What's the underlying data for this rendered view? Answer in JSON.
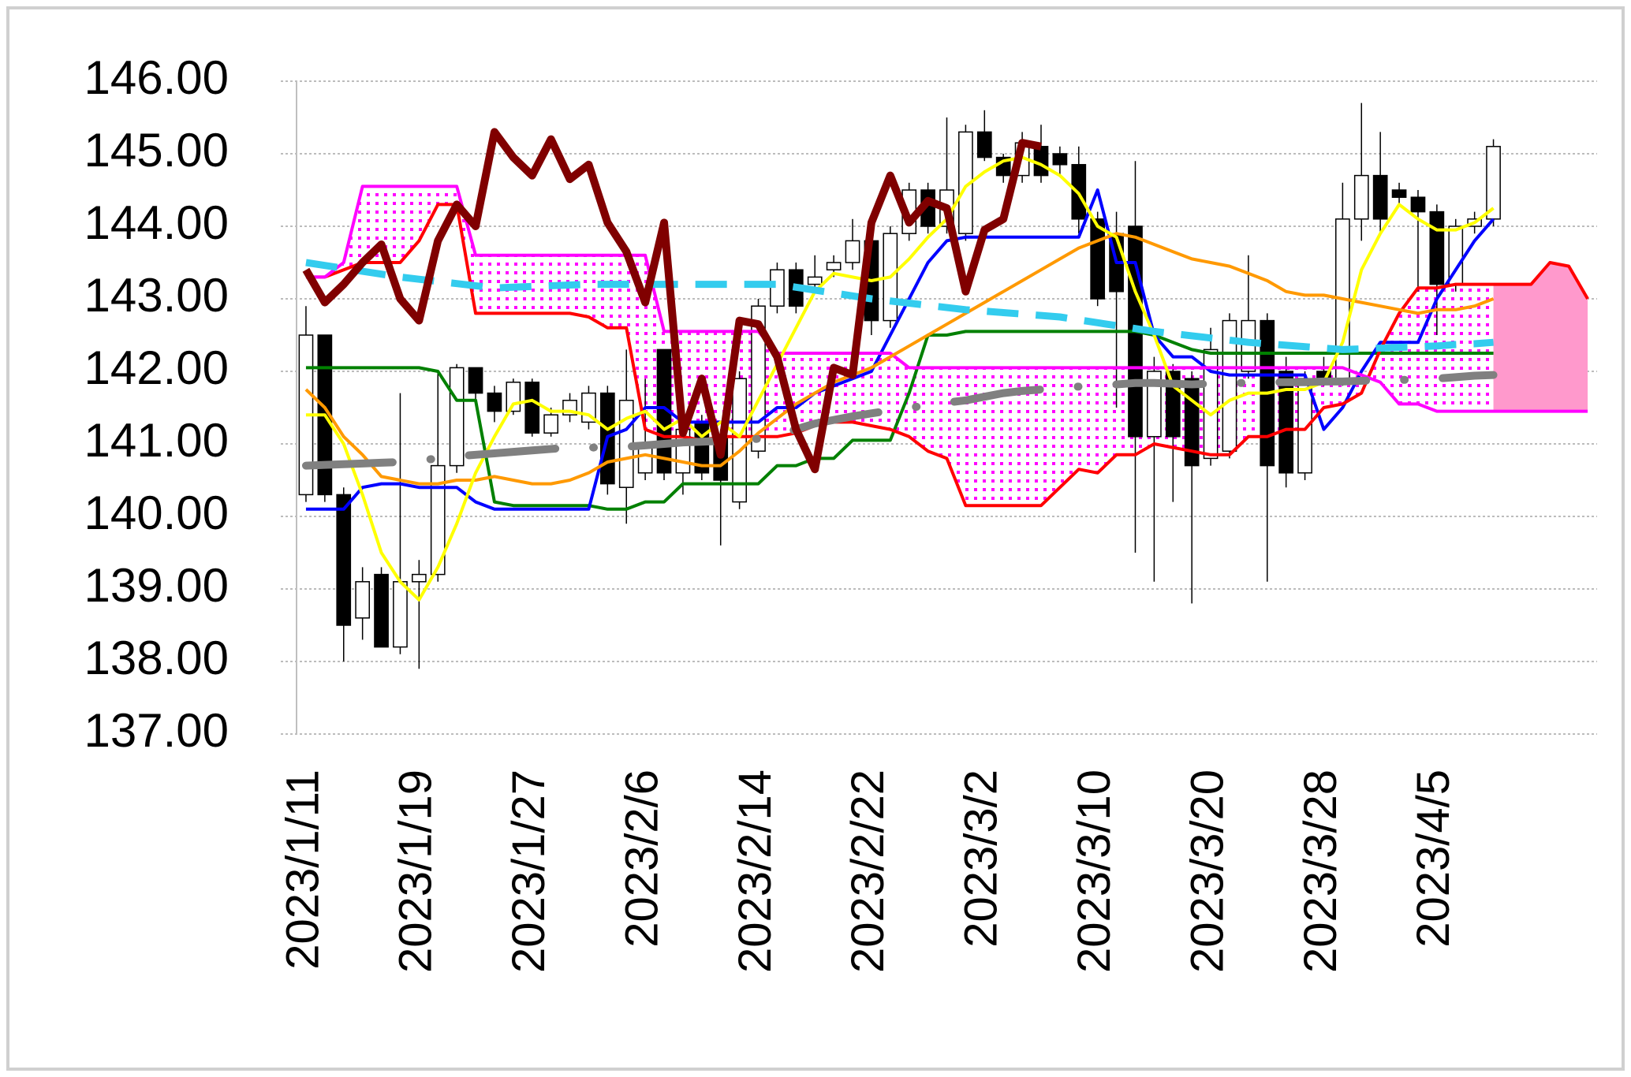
{
  "chart_data": {
    "type": "candlestick",
    "categories": [
      "2023/1/11",
      null,
      null,
      null,
      null,
      null,
      "2023/1/19",
      null,
      null,
      null,
      null,
      null,
      "2023/1/27",
      null,
      null,
      null,
      null,
      null,
      "2023/2/6",
      null,
      null,
      null,
      null,
      null,
      "2023/2/14",
      null,
      null,
      null,
      null,
      null,
      "2023/2/22",
      null,
      null,
      null,
      null,
      null,
      "2023/3/2",
      null,
      null,
      null,
      null,
      null,
      "2023/3/10",
      null,
      null,
      null,
      null,
      null,
      "2023/3/20",
      null,
      null,
      null,
      null,
      null,
      "2023/3/28",
      null,
      null,
      null,
      null,
      null,
      "2023/4/5",
      null,
      null,
      null,
      null,
      null,
      null,
      null,
      null
    ],
    "ohlc": {
      "up_color": "#ffffff",
      "down_color": "#000000",
      "open": [
        140.3,
        142.5,
        140.3,
        138.6,
        139.2,
        138.2,
        139.1,
        139.2,
        140.7,
        142.05,
        141.7,
        141.45,
        141.85,
        141.15,
        141.4,
        141.3,
        141.7,
        140.4,
        140.6,
        142.3,
        140.6,
        141.3,
        141.1,
        140.2,
        140.9,
        142.9,
        143.4,
        143.2,
        143.4,
        143.5,
        143.8,
        142.7,
        143.9,
        144.5,
        144.0,
        143.9,
        145.3,
        144.95,
        144.7,
        145.1,
        145.0,
        144.85,
        144.1,
        143.9,
        144.0,
        141.1,
        142.0,
        141.9,
        140.8,
        140.9,
        142.0,
        142.7,
        142.0,
        140.6,
        142.0,
        141.9,
        144.1,
        144.7,
        144.5,
        144.4,
        144.2,
        143.2,
        144.0,
        144.1,
        null,
        null,
        null,
        null,
        null
      ],
      "high": [
        142.9,
        142.5,
        140.4,
        139.3,
        139.3,
        141.7,
        139.4,
        142.0,
        142.1,
        142.05,
        141.8,
        141.9,
        141.9,
        141.5,
        141.7,
        141.8,
        141.8,
        142.3,
        141.9,
        142.3,
        141.3,
        141.4,
        141.2,
        142.0,
        143.0,
        143.5,
        143.5,
        143.6,
        143.6,
        144.1,
        143.9,
        144.0,
        144.6,
        144.6,
        145.5,
        145.4,
        145.6,
        145.0,
        145.3,
        145.4,
        145.1,
        145.1,
        144.2,
        144.2,
        144.9,
        142.2,
        142.1,
        142.0,
        142.6,
        142.8,
        143.6,
        142.8,
        142.2,
        142.0,
        142.2,
        144.6,
        145.7,
        145.3,
        144.6,
        144.5,
        144.3,
        144.1,
        144.2,
        145.2,
        null,
        null,
        null,
        null,
        null
      ],
      "low": [
        140.2,
        140.2,
        138.0,
        138.3,
        138.2,
        138.1,
        137.9,
        139.1,
        140.6,
        141.6,
        141.3,
        141.4,
        141.1,
        141.1,
        141.3,
        141.2,
        140.3,
        139.9,
        140.5,
        140.5,
        140.3,
        140.5,
        139.6,
        140.1,
        140.8,
        142.8,
        142.8,
        143.1,
        143.3,
        143.4,
        142.5,
        142.6,
        143.8,
        143.9,
        143.9,
        143.8,
        144.9,
        144.6,
        144.6,
        144.6,
        144.7,
        143.9,
        142.9,
        141.5,
        139.5,
        139.1,
        140.2,
        138.8,
        140.7,
        140.8,
        141.9,
        139.1,
        140.4,
        140.5,
        141.8,
        141.8,
        143.8,
        143.9,
        144.3,
        143.1,
        142.5,
        143.1,
        143.9,
        144.0,
        null,
        null,
        null,
        null,
        null
      ],
      "close": [
        142.5,
        140.3,
        138.5,
        139.1,
        138.2,
        139.1,
        139.2,
        140.7,
        142.05,
        141.7,
        141.45,
        141.85,
        141.15,
        141.4,
        141.6,
        141.7,
        140.45,
        141.6,
        141.0,
        140.6,
        141.2,
        140.6,
        140.5,
        141.9,
        142.9,
        143.4,
        142.9,
        143.3,
        143.5,
        143.8,
        142.7,
        143.9,
        144.5,
        144.0,
        144.5,
        145.3,
        144.95,
        144.7,
        145.15,
        144.7,
        144.85,
        144.1,
        143.0,
        143.1,
        141.1,
        142.0,
        141.1,
        140.7,
        142.3,
        142.7,
        142.7,
        140.7,
        140.6,
        141.9,
        141.9,
        144.1,
        144.7,
        144.1,
        144.4,
        144.2,
        143.2,
        144.0,
        144.1,
        145.1,
        null,
        null,
        null,
        null,
        null
      ]
    },
    "cloud": {
      "color": "#ff99cc",
      "dot_color": "#ff00ff"
    },
    "series": [
      {
        "color": "#008000",
        "width": 4,
        "values": [
          142.05,
          142.05,
          142.05,
          142.05,
          142.05,
          142.05,
          142.05,
          142.0,
          141.6,
          141.6,
          140.2,
          140.15,
          140.15,
          140.15,
          140.15,
          140.15,
          140.1,
          140.1,
          140.2,
          140.2,
          140.45,
          140.45,
          140.45,
          140.45,
          140.45,
          140.7,
          140.7,
          140.8,
          140.8,
          141.05,
          141.05,
          141.05,
          141.7,
          142.5,
          142.5,
          142.55,
          142.55,
          142.55,
          142.55,
          142.55,
          142.55,
          142.55,
          142.55,
          142.55,
          142.55,
          142.5,
          142.4,
          142.3,
          142.25,
          142.25,
          142.25,
          142.25,
          142.25,
          142.25,
          142.25,
          142.25,
          142.25,
          142.25,
          142.25,
          142.25,
          142.25,
          142.25,
          142.25,
          142.25,
          null,
          null,
          null,
          null,
          null
        ]
      },
      {
        "color": "#0000ff",
        "width": 4,
        "values": [
          140.1,
          140.1,
          140.1,
          140.4,
          140.45,
          140.45,
          140.4,
          140.4,
          140.4,
          140.2,
          140.1,
          140.1,
          140.1,
          140.1,
          140.1,
          140.1,
          141.1,
          141.2,
          141.5,
          141.5,
          141.3,
          141.3,
          141.3,
          141.3,
          141.3,
          141.5,
          141.5,
          141.7,
          141.8,
          141.9,
          142.0,
          142.5,
          143.0,
          143.5,
          143.8,
          143.85,
          143.85,
          143.85,
          143.85,
          143.85,
          143.85,
          143.85,
          144.5,
          143.5,
          143.5,
          142.5,
          142.2,
          142.2,
          142.0,
          141.95,
          141.95,
          141.95,
          141.95,
          141.95,
          141.2,
          141.5,
          142.0,
          142.4,
          142.4,
          142.4,
          143.0,
          143.4,
          143.8,
          144.1,
          null,
          null,
          null,
          null,
          null
        ]
      },
      {
        "color": "#ff0000",
        "width": 4,
        "cloud_edge": true,
        "values": [
          143.3,
          143.3,
          143.4,
          143.5,
          143.5,
          143.5,
          143.8,
          144.3,
          144.3,
          142.8,
          142.8,
          142.8,
          142.8,
          142.8,
          142.8,
          142.75,
          142.6,
          142.6,
          141.2,
          141.1,
          141.1,
          141.05,
          141.1,
          141.1,
          141.1,
          141.1,
          141.15,
          141.25,
          141.3,
          141.3,
          141.25,
          141.2,
          141.1,
          140.9,
          140.8,
          140.15,
          140.15,
          140.15,
          140.15,
          140.15,
          140.4,
          140.65,
          140.6,
          140.85,
          140.85,
          141.0,
          140.95,
          140.9,
          140.85,
          140.85,
          141.1,
          141.1,
          141.2,
          141.2,
          141.5,
          141.55,
          141.7,
          142.3,
          142.8,
          143.15,
          143.15,
          143.2,
          143.2,
          143.2,
          143.2,
          143.2,
          143.5,
          143.45,
          143.0
        ]
      },
      {
        "color": "#ff00ff",
        "width": 4,
        "cloud_edge": true,
        "values": [
          143.3,
          143.3,
          143.5,
          144.55,
          144.55,
          144.55,
          144.55,
          144.55,
          144.55,
          143.6,
          143.6,
          143.6,
          143.6,
          143.6,
          143.6,
          143.6,
          143.6,
          143.6,
          143.6,
          142.55,
          142.55,
          142.55,
          142.55,
          142.55,
          142.55,
          142.25,
          142.25,
          142.25,
          142.25,
          142.25,
          142.25,
          142.25,
          142.05,
          142.05,
          142.05,
          142.05,
          142.05,
          142.05,
          142.05,
          142.05,
          142.05,
          142.05,
          142.05,
          142.05,
          142.05,
          142.05,
          142.05,
          142.05,
          142.05,
          142.05,
          142.05,
          142.05,
          142.05,
          142.05,
          142.05,
          142.05,
          141.95,
          141.85,
          141.55,
          141.55,
          141.45,
          141.45,
          141.45,
          141.45,
          141.45,
          141.45,
          141.45,
          141.45,
          141.45
        ]
      },
      {
        "color": "#ff9900",
        "width": 4,
        "values": [
          141.75,
          141.5,
          141.1,
          140.85,
          140.55,
          140.5,
          140.45,
          140.45,
          140.5,
          140.5,
          140.55,
          140.5,
          140.45,
          140.45,
          140.5,
          140.6,
          140.75,
          140.8,
          140.85,
          140.8,
          140.75,
          140.7,
          140.7,
          140.9,
          141.15,
          141.35,
          141.55,
          141.7,
          141.85,
          141.95,
          142.05,
          142.2,
          142.35,
          142.5,
          142.65,
          142.8,
          142.95,
          143.1,
          143.25,
          143.4,
          143.55,
          143.7,
          143.8,
          143.9,
          143.85,
          143.75,
          143.65,
          143.55,
          143.5,
          143.45,
          143.35,
          143.25,
          143.1,
          143.05,
          143.05,
          143.0,
          142.95,
          142.9,
          142.85,
          142.8,
          142.85,
          142.85,
          142.9,
          143.0,
          null,
          null,
          null,
          null,
          null
        ]
      },
      {
        "color": "#ffff00",
        "width": 4,
        "values": [
          141.4,
          141.4,
          141.0,
          140.3,
          139.5,
          139.1,
          138.85,
          139.3,
          139.9,
          140.6,
          141.1,
          141.55,
          141.6,
          141.45,
          141.45,
          141.4,
          141.2,
          141.35,
          141.45,
          141.2,
          141.35,
          141.1,
          141.3,
          141.1,
          141.6,
          142.1,
          142.6,
          143.1,
          143.35,
          143.3,
          143.25,
          143.3,
          143.55,
          143.85,
          144.1,
          144.55,
          144.75,
          144.9,
          144.95,
          144.85,
          144.7,
          144.45,
          144.0,
          143.85,
          143.1,
          142.5,
          141.8,
          141.6,
          141.4,
          141.6,
          141.7,
          141.7,
          141.75,
          141.75,
          141.85,
          142.4,
          143.4,
          143.9,
          144.3,
          144.1,
          143.95,
          143.95,
          144.05,
          144.25,
          null,
          null,
          null,
          null,
          null
        ]
      },
      {
        "color": "#33ccee",
        "width": 9,
        "style": "dashed",
        "values": [
          143.5,
          143.46,
          143.42,
          143.38,
          143.34,
          143.3,
          143.27,
          143.24,
          143.21,
          143.18,
          143.15,
          143.16,
          143.17,
          143.18,
          143.19,
          143.2,
          143.2,
          143.2,
          143.2,
          143.2,
          143.2,
          143.2,
          143.2,
          143.2,
          143.2,
          143.2,
          143.16,
          143.12,
          143.08,
          143.04,
          143.0,
          142.97,
          142.94,
          142.91,
          142.88,
          142.85,
          142.83,
          142.81,
          142.79,
          142.77,
          142.75,
          142.71,
          142.67,
          142.63,
          142.59,
          142.55,
          142.52,
          142.49,
          142.46,
          142.43,
          142.4,
          142.38,
          142.36,
          142.34,
          142.32,
          142.3,
          142.31,
          142.32,
          142.33,
          142.34,
          142.35,
          142.37,
          142.38,
          142.4,
          null,
          null,
          null,
          null,
          null
        ]
      },
      {
        "color": "#808080",
        "width": 10,
        "style": "dash-dot",
        "values": [
          140.7,
          140.71,
          140.72,
          140.73,
          140.74,
          140.75,
          140.77,
          140.8,
          140.83,
          140.85,
          140.87,
          140.89,
          140.91,
          140.93,
          140.95,
          140.95,
          140.95,
          140.96,
          140.98,
          141.0,
          141.02,
          141.03,
          141.04,
          141.05,
          141.07,
          141.12,
          141.2,
          141.28,
          141.33,
          141.38,
          141.42,
          141.46,
          141.5,
          141.53,
          141.57,
          141.6,
          141.65,
          141.7,
          141.73,
          141.75,
          141.77,
          141.79,
          141.8,
          141.82,
          141.84,
          141.84,
          141.83,
          141.82,
          141.83,
          141.84,
          141.84,
          141.85,
          141.85,
          141.85,
          141.86,
          141.86,
          141.87,
          141.88,
          141.88,
          141.89,
          141.9,
          141.92,
          141.94,
          141.95,
          null,
          null,
          null,
          null,
          null
        ]
      },
      {
        "color": "#800000",
        "width": 10,
        "values": [
          143.4,
          142.95,
          143.2,
          143.5,
          143.75,
          143.0,
          142.7,
          143.8,
          144.3,
          144.0,
          145.3,
          144.95,
          144.7,
          145.2,
          144.65,
          144.85,
          144.05,
          143.65,
          142.95,
          144.05,
          141.15,
          141.9,
          140.85,
          142.7,
          142.65,
          142.2,
          141.2,
          140.65,
          142.05,
          141.95,
          144.05,
          144.7,
          144.05,
          144.35,
          144.25,
          143.1,
          143.95,
          144.1,
          145.15,
          145.1,
          null,
          null,
          null,
          null,
          null,
          null,
          null,
          null,
          null,
          null,
          null,
          null,
          null,
          null,
          null,
          null,
          null,
          null,
          null,
          null,
          null,
          null,
          null,
          null,
          null,
          null,
          null,
          null,
          null
        ]
      }
    ],
    "ylim": [
      137,
      146
    ],
    "yticks": [
      {
        "value": 137,
        "label": "137.00"
      },
      {
        "value": 138,
        "label": "138.00"
      },
      {
        "value": 139,
        "label": "139.00"
      },
      {
        "value": 140,
        "label": "140.00"
      },
      {
        "value": 141,
        "label": "141.00"
      },
      {
        "value": 142,
        "label": "142.00"
      },
      {
        "value": 143,
        "label": "143.00"
      },
      {
        "value": 144,
        "label": "144.00"
      },
      {
        "value": 145,
        "label": "145.00"
      },
      {
        "value": 146,
        "label": "146.00"
      }
    ],
    "grid": true
  }
}
